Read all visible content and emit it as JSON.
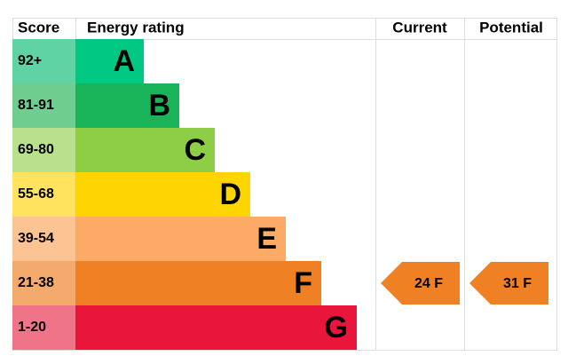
{
  "chart_data": {
    "type": "epc",
    "headers": {
      "score": "Score",
      "rating": "Energy rating",
      "current": "Current",
      "potential": "Potential"
    },
    "rows": [
      {
        "score": "92+",
        "rating": "A",
        "color": "#00c781",
        "light": "#5fd3a4"
      },
      {
        "score": "81-91",
        "rating": "B",
        "color": "#19b459",
        "light": "#6fcd90"
      },
      {
        "score": "69-80",
        "rating": "C",
        "color": "#8dce46",
        "light": "#b9e08c"
      },
      {
        "score": "55-68",
        "rating": "D",
        "color": "#ffd500",
        "light": "#ffe35f"
      },
      {
        "score": "39-54",
        "rating": "E",
        "color": "#fcaa65",
        "light": "#fcc393"
      },
      {
        "score": "21-38",
        "rating": "F",
        "color": "#ef8023",
        "light": "#f4aa6c",
        "current": "24 F",
        "potential": "31 F"
      },
      {
        "score": "1-20",
        "rating": "G",
        "color": "#e9153b",
        "light": "#f07488"
      }
    ]
  }
}
